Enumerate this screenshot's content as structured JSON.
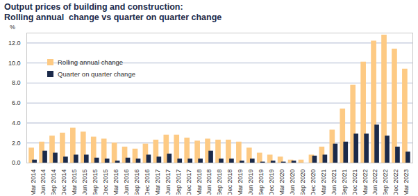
{
  "chart_data": {
    "type": "bar",
    "title": "Output prices of building and construction:",
    "subtitle": "Rolling annual  change vs quarter on quarter change",
    "y_label": "%",
    "categories": [
      "Mar 2014",
      "Jun 2014",
      "Sep 2014",
      "Dec 2014",
      "Mar 2015",
      "Jun 2015",
      "Sep 2015",
      "Dec 2015",
      "Mar 2016",
      "Jun 2016",
      "Sep 2016",
      "Dec 2016",
      "Mar 2017",
      "Jun 2017",
      "Sep 2017",
      "Dec 2017",
      "Mar 2018",
      "Jun 2018",
      "Sep 2018",
      "Dec 2018",
      "Mar 2019",
      "Jun 2019",
      "Sep 2019",
      "Dec 2019",
      "Mar 2020",
      "Jun 2020",
      "Sep 2020",
      "Dec 2020",
      "Mar 2021",
      "Jun 2021",
      "Sep 2021",
      "Dec 2021",
      "Mar 2022",
      "Jun 2022",
      "Sep 2022",
      "Dec 2022",
      "Mar 2023"
    ],
    "series": [
      {
        "name": "Rolling annual change",
        "color": "#fdca84",
        "values": [
          1.5,
          2.1,
          2.7,
          3.0,
          3.5,
          3.1,
          2.6,
          2.4,
          2.0,
          1.6,
          1.4,
          1.9,
          2.3,
          2.8,
          2.8,
          2.5,
          2.2,
          2.4,
          2.3,
          2.3,
          2.1,
          1.5,
          1.0,
          0.8,
          0.6,
          0.3,
          0.3,
          0.8,
          1.6,
          3.3,
          5.4,
          7.8,
          10.1,
          12.2,
          12.8,
          11.4,
          9.4
        ]
      },
      {
        "name": "Quarter on quarter change",
        "color": "#1b2a4a",
        "values": [
          0.3,
          1.2,
          1.0,
          0.6,
          0.8,
          0.8,
          0.5,
          0.4,
          0.2,
          0.5,
          0.4,
          0.8,
          0.6,
          0.9,
          0.4,
          0.4,
          0.4,
          1.2,
          0.4,
          0.4,
          0.2,
          0.4,
          0.1,
          0.2,
          0.1,
          0.2,
          0.0,
          0.7,
          0.8,
          1.9,
          2.1,
          2.9,
          2.9,
          3.8,
          2.7,
          1.6,
          1.1
        ]
      }
    ],
    "ylim": [
      0,
      13
    ],
    "yticks": [
      {
        "value": 0,
        "label": "0.0"
      },
      {
        "value": 2,
        "label": "2.0"
      },
      {
        "value": 4,
        "label": "4.0"
      },
      {
        "value": 6,
        "label": "6.0"
      },
      {
        "value": 8,
        "label": "8.0"
      },
      {
        "value": 10,
        "label": "10.0"
      },
      {
        "value": 12,
        "label": "12.0"
      }
    ],
    "grid": true,
    "legend": "top-left"
  }
}
